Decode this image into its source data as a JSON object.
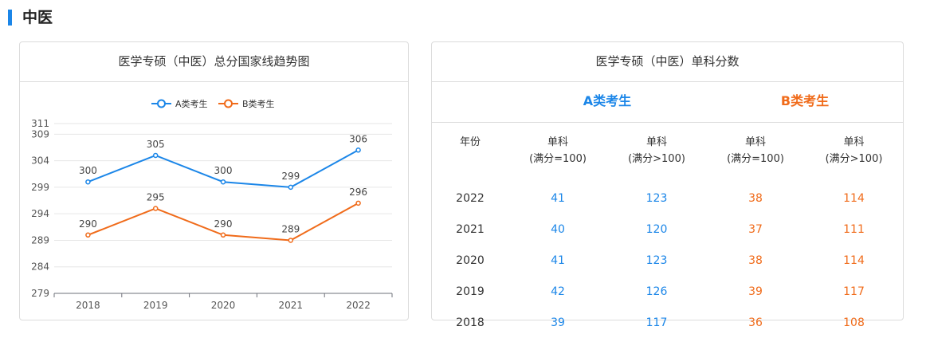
{
  "section": {
    "title": "中医"
  },
  "line_card": {
    "title": "医学专硕（中医）总分国家线趋势图"
  },
  "table_card": {
    "title": "医学专硕（中医）单科分数",
    "category_a": "A类考生",
    "category_b": "B类考生",
    "headers": [
      {
        "line1": "年份",
        "line2": ""
      },
      {
        "line1": "单科",
        "line2": "(满分=100)"
      },
      {
        "line1": "单科",
        "line2": "(满分>100)"
      },
      {
        "line1": "单科",
        "line2": "(满分=100)"
      },
      {
        "line1": "单科",
        "line2": "(满分>100)"
      }
    ],
    "rows": [
      [
        "2022",
        "41",
        "123",
        "38",
        "114"
      ],
      [
        "2021",
        "40",
        "120",
        "37",
        "111"
      ],
      [
        "2020",
        "41",
        "123",
        "38",
        "114"
      ],
      [
        "2019",
        "42",
        "126",
        "39",
        "117"
      ],
      [
        "2018",
        "39",
        "117",
        "36",
        "108"
      ]
    ]
  },
  "colors": {
    "accent": "#1b86e8",
    "series_a": "#1b86e8",
    "series_b": "#f06b1a"
  },
  "chart_data": {
    "type": "line",
    "title": "医学专硕（中医）总分国家线趋势图",
    "x": [
      "2018",
      "2019",
      "2020",
      "2021",
      "2022"
    ],
    "series": [
      {
        "name": "A类考生",
        "values": [
          300,
          305,
          300,
          299,
          306
        ],
        "color": "#1b86e8"
      },
      {
        "name": "B类考生",
        "values": [
          290,
          295,
          290,
          289,
          296
        ],
        "color": "#f06b1a"
      }
    ],
    "yticks": [
      279,
      284,
      289,
      294,
      299,
      304,
      309,
      311
    ],
    "ylim": [
      279,
      311
    ],
    "grid": true,
    "legend": "top-center",
    "data_labels": true
  }
}
